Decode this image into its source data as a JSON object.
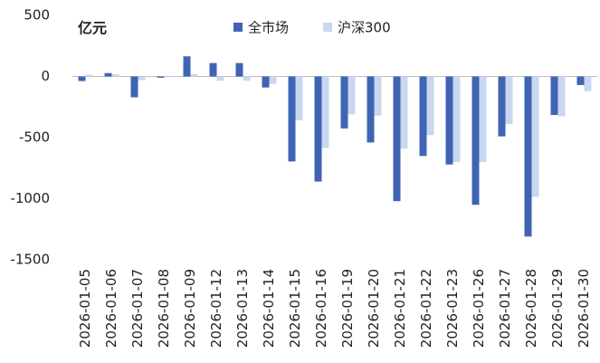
{
  "chart_data": {
    "type": "bar",
    "y_label": "亿元",
    "categories": [
      "2026-01-05",
      "2026-01-06",
      "2026-01-07",
      "2026-01-08",
      "2026-01-09",
      "2026-01-12",
      "2026-01-13",
      "2026-01-14",
      "2026-01-15",
      "2026-01-16",
      "2026-01-19",
      "2026-01-20",
      "2026-01-21",
      "2026-01-22",
      "2026-01-23",
      "2026-01-26",
      "2026-01-27",
      "2026-01-28",
      "2026-01-29",
      "2026-01-30"
    ],
    "series": [
      {
        "name": "全市场",
        "color": "#3f64b4",
        "values": [
          -37,
          28,
          -170,
          -10,
          165,
          110,
          110,
          -90,
          -695,
          -860,
          -425,
          -540,
          -1020,
          -650,
          -720,
          -1050,
          -490,
          -1310,
          -315,
          -70
        ]
      },
      {
        "name": "沪深300",
        "color": "#c9d7f0",
        "values": [
          15,
          18,
          -30,
          -5,
          20,
          -35,
          -35,
          -60,
          -360,
          -585,
          -310,
          -320,
          -590,
          -480,
          -700,
          -700,
          -390,
          -985,
          -325,
          -120
        ]
      }
    ],
    "ylim": [
      -1500,
      500
    ],
    "yticks": [
      -1500,
      -1000,
      -500,
      0,
      500
    ],
    "legend": "top"
  }
}
